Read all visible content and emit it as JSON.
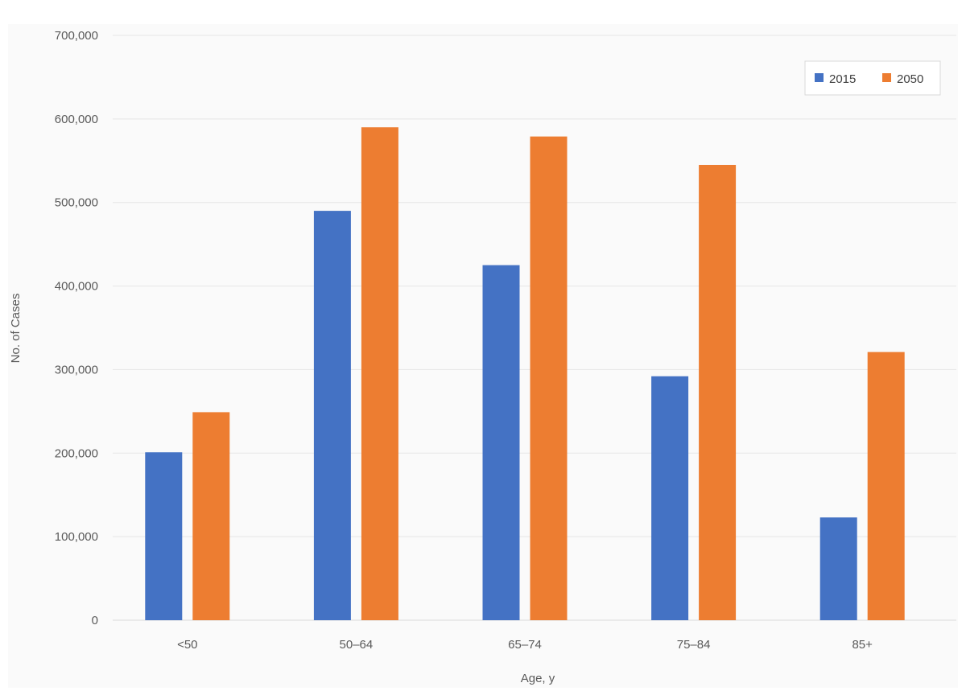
{
  "chart_data": {
    "type": "bar",
    "title": "",
    "xlabel": "Age, y",
    "ylabel": "No. of Cases",
    "categories": [
      "<50",
      "50–64",
      "65–74",
      "75–84",
      "85+"
    ],
    "series": [
      {
        "name": "2015",
        "color": "#4472c4",
        "values": [
          201000,
          490000,
          425000,
          292000,
          123000
        ]
      },
      {
        "name": "2050",
        "color": "#ed7d31",
        "values": [
          249000,
          590000,
          579000,
          545000,
          321000
        ]
      }
    ],
    "ylim": [
      0,
      700000
    ],
    "yticks": [
      0,
      100000,
      200000,
      300000,
      400000,
      500000,
      600000,
      700000
    ],
    "ytick_labels": [
      "0",
      "100,000",
      "200,000",
      "300,000",
      "400,000",
      "500,000",
      "600,000",
      "700,000"
    ],
    "grid": true,
    "legend_position": "top-right"
  }
}
